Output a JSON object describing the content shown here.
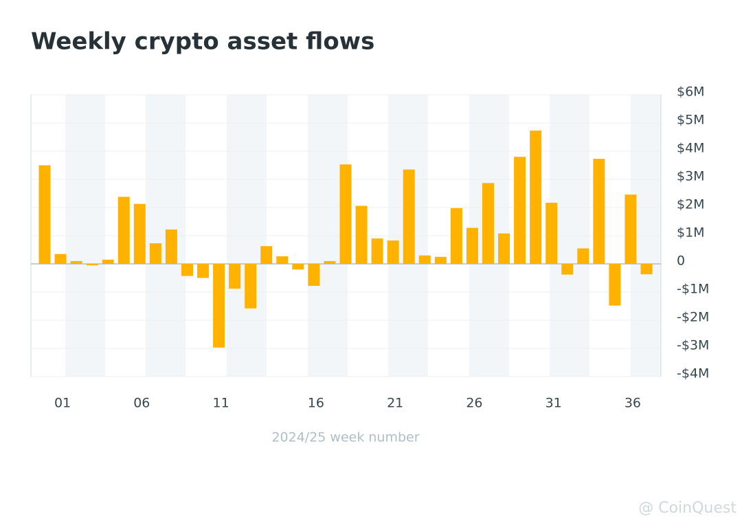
{
  "chart_data": {
    "type": "bar",
    "title": "Weekly crypto asset flows",
    "x_label": "2024/25 week number",
    "categories": [
      null,
      "01",
      null,
      null,
      null,
      null,
      "06",
      null,
      null,
      null,
      null,
      "11",
      null,
      null,
      null,
      null,
      null,
      "16",
      null,
      null,
      null,
      null,
      "21",
      null,
      null,
      null,
      null,
      "26",
      null,
      null,
      null,
      null,
      "31",
      null,
      null,
      null,
      null,
      "36",
      null
    ],
    "values": [
      3.5,
      0.35,
      0.1,
      -0.05,
      0.15,
      2.38,
      2.13,
      0.73,
      1.22,
      -0.43,
      -0.5,
      -2.97,
      -0.88,
      -1.58,
      0.63,
      0.27,
      -0.2,
      -0.78,
      0.1,
      3.53,
      2.06,
      0.9,
      0.83,
      3.35,
      0.3,
      0.25,
      1.98,
      1.28,
      2.87,
      1.08,
      3.8,
      4.73,
      2.17,
      -0.38,
      0.55,
      3.73,
      -1.48,
      2.46,
      -0.37
    ],
    "color": "#ffb300",
    "ylim": [
      -4,
      6
    ],
    "yticks": [
      {
        "value": -4,
        "label": "-$4M"
      },
      {
        "value": -3,
        "label": "-$3M"
      },
      {
        "value": -2,
        "label": "-$2M"
      },
      {
        "value": -1,
        "label": "-$1M"
      },
      0,
      {
        "value": 1,
        "label": "$1M"
      },
      {
        "value": 2,
        "label": "$2M"
      },
      {
        "value": 3,
        "label": "$3M"
      },
      {
        "value": 4,
        "label": "$4M"
      },
      {
        "value": 5,
        "label": "$5M"
      },
      {
        "value": 6,
        "label": "$6M"
      }
    ],
    "grid": true
  },
  "watermark": "@ CoinQuest"
}
